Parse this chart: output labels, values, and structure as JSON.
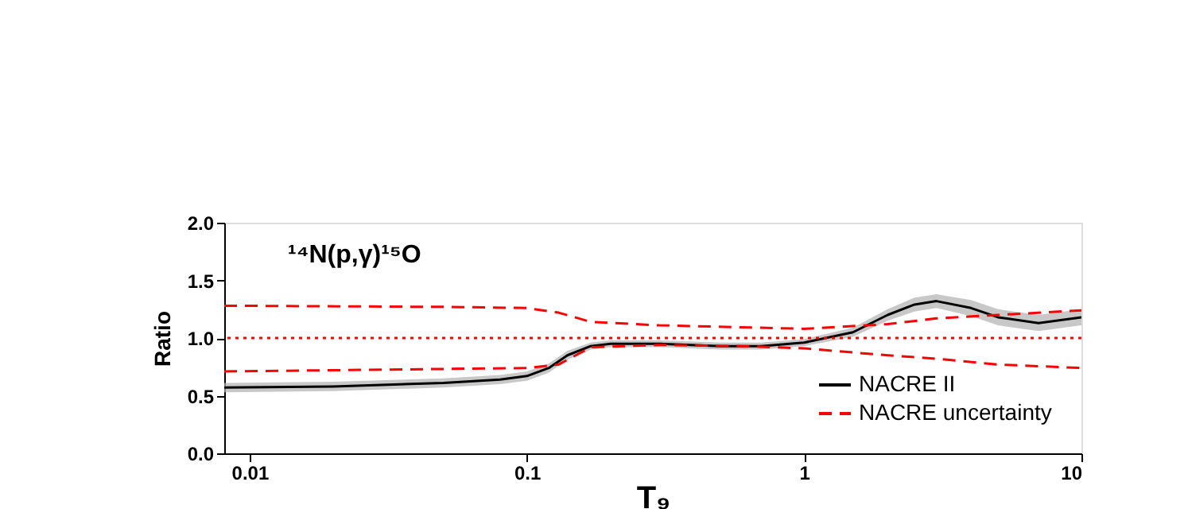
{
  "chart_data": {
    "type": "line",
    "xlabel": "T₉",
    "ylabel": "Ratio",
    "annotations": [
      "¹⁴N(p,γ)¹⁵O"
    ],
    "log": "x",
    "xlim": [
      0.0081,
      10
    ],
    "xticks": [
      0.01,
      0.1,
      1,
      10
    ],
    "ylim": [
      0,
      2
    ],
    "yticks": [
      {
        "value": 0,
        "label": "0.0"
      },
      {
        "value": 0.5,
        "label": "0.5"
      },
      {
        "value": 1,
        "label": "1.0"
      },
      {
        "value": 1.5,
        "label": "1.5"
      },
      {
        "value": 2,
        "label": "2.0"
      }
    ],
    "grid": false,
    "legend": "bottom right",
    "series": [
      {
        "name": "NACRE II",
        "color": "#000000",
        "line_style": "solid",
        "x": [
          0.0081,
          0.02,
          0.05,
          0.08,
          0.1,
          0.12,
          0.14,
          0.17,
          0.2,
          0.3,
          0.5,
          0.7,
          1,
          1.5,
          2,
          2.5,
          3,
          4,
          5,
          7,
          10
        ],
        "values": [
          0.57,
          0.58,
          0.61,
          0.64,
          0.67,
          0.74,
          0.85,
          0.93,
          0.95,
          0.95,
          0.93,
          0.93,
          0.96,
          1.05,
          1.2,
          1.29,
          1.32,
          1.26,
          1.18,
          1.13,
          1.18
        ],
        "lower": [
          0.53,
          0.54,
          0.57,
          0.6,
          0.63,
          0.7,
          0.81,
          0.9,
          0.92,
          0.92,
          0.9,
          0.9,
          0.93,
          1.01,
          1.15,
          1.23,
          1.26,
          1.19,
          1.11,
          1.06,
          1.11
        ],
        "upper": [
          0.61,
          0.62,
          0.65,
          0.68,
          0.71,
          0.78,
          0.89,
          0.96,
          0.98,
          0.98,
          0.96,
          0.96,
          0.99,
          1.09,
          1.25,
          1.35,
          1.38,
          1.33,
          1.25,
          1.2,
          1.25
        ]
      },
      {
        "name": "NACRE uncertainty",
        "color": "#ff0000",
        "line_style": "dashed",
        "x": [
          0.0081,
          0.05,
          0.1,
          0.13,
          0.17,
          0.3,
          1,
          2,
          3,
          5,
          10
        ],
        "values": [
          1.28,
          1.27,
          1.26,
          1.22,
          1.14,
          1.11,
          1.08,
          1.12,
          1.17,
          1.2,
          1.24
        ]
      },
      {
        "color": "#ff0000",
        "line_style": "dashed",
        "x": [
          0.0081,
          0.1,
          0.13,
          0.17,
          0.3,
          0.6,
          1,
          2,
          3,
          5,
          10
        ],
        "values": [
          0.71,
          0.74,
          0.77,
          0.92,
          0.94,
          0.93,
          0.91,
          0.85,
          0.82,
          0.77,
          0.74
        ]
      }
    ],
    "ref_lines": [
      {
        "axis": "y",
        "value": 1,
        "color": "#ff0000",
        "line_style": "dotted"
      }
    ]
  }
}
